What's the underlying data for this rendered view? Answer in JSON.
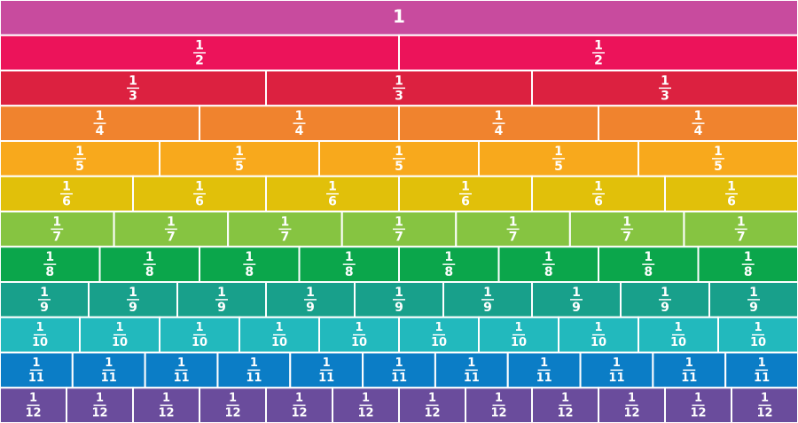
{
  "rows": [
    {
      "label": "1",
      "color": "#c84b9e"
    },
    {
      "numerator": "1",
      "denominator": "2",
      "color": "#ec135a"
    },
    {
      "numerator": "1",
      "denominator": "3",
      "color": "#dc2140"
    },
    {
      "numerator": "1",
      "denominator": "4",
      "color": "#f0832e"
    },
    {
      "numerator": "1",
      "denominator": "5",
      "color": "#f8a91c"
    },
    {
      "numerator": "1",
      "denominator": "6",
      "color": "#e1c00a"
    },
    {
      "numerator": "1",
      "denominator": "7",
      "color": "#86c441"
    },
    {
      "numerator": "1",
      "denominator": "8",
      "color": "#0ba64b"
    },
    {
      "numerator": "1",
      "denominator": "9",
      "color": "#18a08b"
    },
    {
      "numerator": "1",
      "denominator": "10",
      "color": "#22b9bd"
    },
    {
      "numerator": "1",
      "denominator": "11",
      "color": "#0b7dc6"
    },
    {
      "numerator": "1",
      "denominator": "12",
      "color": "#6a4c9c"
    }
  ]
}
